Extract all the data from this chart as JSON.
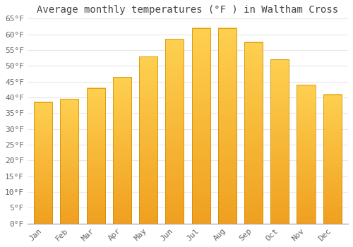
{
  "title": "Average monthly temperatures (°F ) in Waltham Cross",
  "months": [
    "Jan",
    "Feb",
    "Mar",
    "Apr",
    "May",
    "Jun",
    "Jul",
    "Aug",
    "Sep",
    "Oct",
    "Nov",
    "Dec"
  ],
  "values": [
    38.5,
    39.5,
    43.0,
    46.5,
    53.0,
    58.5,
    62.0,
    62.0,
    57.5,
    52.0,
    44.0,
    41.0
  ],
  "bar_color_top": "#FFD050",
  "bar_color_bottom": "#F0A020",
  "ylim": [
    0,
    65
  ],
  "yticks": [
    0,
    5,
    10,
    15,
    20,
    25,
    30,
    35,
    40,
    45,
    50,
    55,
    60,
    65
  ],
  "ytick_labels": [
    "0°F",
    "5°F",
    "10°F",
    "15°F",
    "20°F",
    "25°F",
    "30°F",
    "35°F",
    "40°F",
    "45°F",
    "50°F",
    "55°F",
    "60°F",
    "65°F"
  ],
  "bg_color": "#FFFFFF",
  "grid_color": "#E8E8E8",
  "title_fontsize": 10,
  "tick_fontsize": 8,
  "bar_width": 0.7
}
